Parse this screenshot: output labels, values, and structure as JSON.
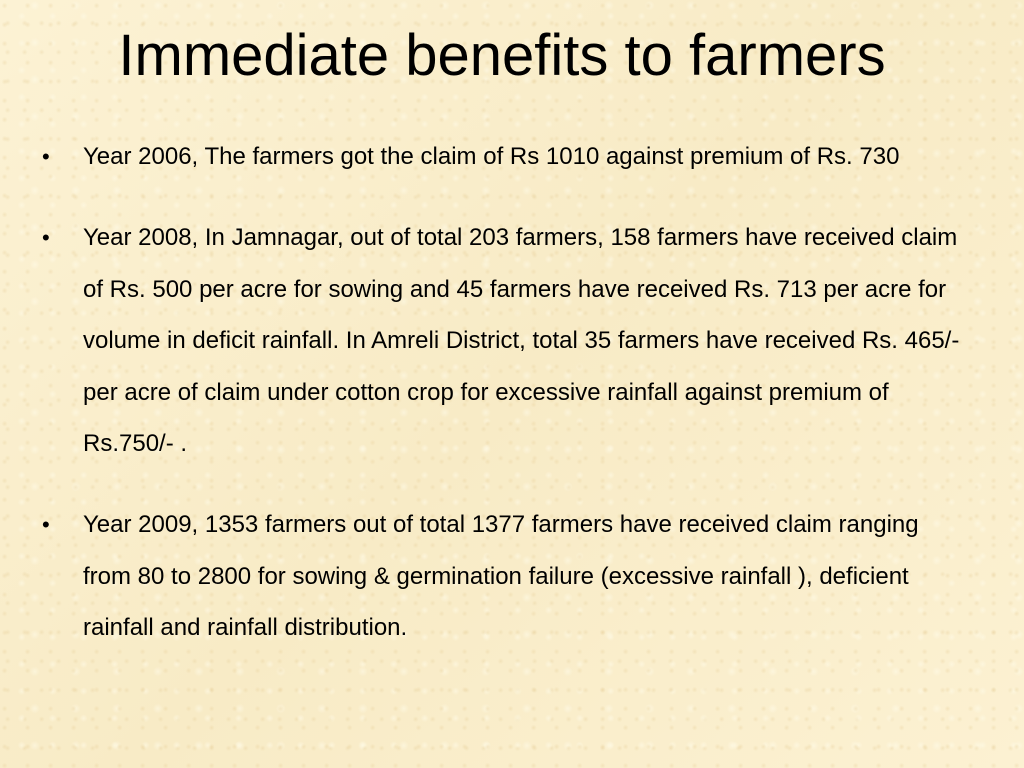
{
  "slide": {
    "title": "Immediate benefits to farmers",
    "bullet_glyph": "•",
    "bullets": [
      "Year 2006, The farmers got the claim of Rs 1010 against premium of Rs. 730",
      "Year 2008, In Jamnagar, out of total 203 farmers, 158 farmers have received claim of Rs. 500 per acre for sowing and 45 farmers have received Rs. 713 per acre for volume in deficit rainfall. In Amreli District, total 35 farmers have received Rs. 465/- per acre of claim under cotton crop for excessive rainfall against premium of Rs.750/- .",
      "Year 2009, 1353 farmers out of total 1377 farmers have received claim ranging  from 80 to 2800 for sowing & germination failure (excessive rainfall ), deficient rainfall and rainfall distribution."
    ]
  },
  "colors": {
    "background": "#fbf0cf",
    "text": "#000000"
  }
}
